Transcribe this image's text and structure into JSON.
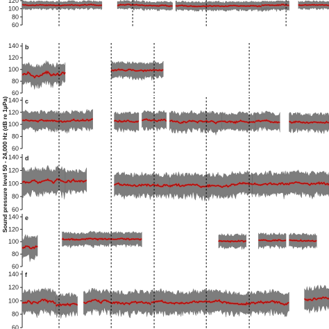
{
  "figure": {
    "ylabel": "Sound pressure level 50 - 24,000 Hz (dB re 1µPa)"
  },
  "chart_data": [
    {
      "type": "area",
      "panel": "a",
      "letter": "",
      "yticks": [
        60,
        80,
        100,
        120
      ],
      "ylim": [
        60,
        125
      ],
      "x_domain": [
        0,
        1
      ],
      "dividers": [
        0.12,
        0.36,
        0.6,
        0.86
      ],
      "segments": [
        {
          "x": [
            0.0,
            0.26
          ],
          "mean": 109,
          "spread": 9,
          "var": 2
        },
        {
          "x": [
            0.31,
            0.4
          ],
          "mean": 109,
          "spread": 10,
          "var": 2
        },
        {
          "x": [
            0.4,
            0.49
          ],
          "mean": 107,
          "spread": 9,
          "var": 2
        },
        {
          "x": [
            0.5,
            0.87
          ],
          "mean": 107,
          "spread": 10,
          "var": 2
        },
        {
          "x": [
            0.78,
            0.87
          ],
          "mean": 109,
          "spread": 9,
          "var": 1
        },
        {
          "x": [
            0.9,
            1.0
          ],
          "mean": 109,
          "spread": 9,
          "var": 1
        }
      ]
    },
    {
      "type": "area",
      "panel": "b",
      "letter": "b",
      "yticks": [
        60,
        80,
        100,
        120,
        140
      ],
      "ylim": [
        60,
        145
      ],
      "x_domain": [
        0,
        1
      ],
      "dividers": [
        0.12,
        0.29,
        0.43,
        0.74
      ],
      "segments": [
        {
          "x": [
            0.0,
            0.14
          ],
          "mean": 92,
          "spread": 16,
          "var": 7
        },
        {
          "x": [
            0.29,
            0.46
          ],
          "mean": 99,
          "spread": 12,
          "var": 3
        }
      ]
    },
    {
      "type": "area",
      "panel": "c",
      "letter": "c",
      "yticks": [
        60,
        80,
        100,
        120,
        140
      ],
      "ylim": [
        60,
        145
      ],
      "x_domain": [
        0,
        1
      ],
      "dividers": [
        0.12,
        0.29,
        0.43,
        0.6,
        0.74
      ],
      "segments": [
        {
          "x": [
            0.0,
            0.23
          ],
          "mean": 106,
          "spread": 14,
          "var": 3
        },
        {
          "x": [
            0.3,
            0.38
          ],
          "mean": 106,
          "spread": 13,
          "var": 3
        },
        {
          "x": [
            0.39,
            0.47
          ],
          "mean": 106,
          "spread": 13,
          "var": 3
        },
        {
          "x": [
            0.48,
            0.65
          ],
          "mean": 104,
          "spread": 14,
          "var": 4
        },
        {
          "x": [
            0.65,
            0.76
          ],
          "mean": 105,
          "spread": 13,
          "var": 3
        },
        {
          "x": [
            0.76,
            0.84
          ],
          "mean": 105,
          "spread": 13,
          "var": 3
        },
        {
          "x": [
            0.87,
            1.0
          ],
          "mean": 104,
          "spread": 13,
          "var": 3
        }
      ]
    },
    {
      "type": "area",
      "panel": "d",
      "letter": "d",
      "yticks": [
        60,
        80,
        100,
        120,
        140
      ],
      "ylim": [
        60,
        145
      ],
      "x_domain": [
        0,
        1
      ],
      "dividers": [
        0.12,
        0.29,
        0.43,
        0.6,
        0.74
      ],
      "segments": [
        {
          "x": [
            0.0,
            0.14
          ],
          "mean": 103,
          "spread": 18,
          "var": 5
        },
        {
          "x": [
            0.14,
            0.21
          ],
          "mean": 103,
          "spread": 16,
          "var": 5
        },
        {
          "x": [
            0.3,
            0.48
          ],
          "mean": 98,
          "spread": 16,
          "var": 4
        },
        {
          "x": [
            0.48,
            0.75
          ],
          "mean": 97,
          "spread": 16,
          "var": 4
        },
        {
          "x": [
            0.75,
            1.0
          ],
          "mean": 100,
          "spread": 16,
          "var": 4
        }
      ]
    },
    {
      "type": "area",
      "panel": "e",
      "letter": "e",
      "yticks": [
        60,
        80,
        100,
        120,
        140
      ],
      "ylim": [
        60,
        145
      ],
      "x_domain": [
        0,
        1
      ],
      "dividers": [
        0.12,
        0.29,
        0.43,
        0.6,
        0.74
      ],
      "segments": [
        {
          "x": [
            0.0,
            0.05
          ],
          "mean": 92,
          "spread": 16,
          "var": 6
        },
        {
          "x": [
            0.13,
            0.39
          ],
          "mean": 104,
          "spread": 10,
          "var": 2
        },
        {
          "x": [
            0.64,
            0.73
          ],
          "mean": 101,
          "spread": 10,
          "var": 2
        },
        {
          "x": [
            0.77,
            0.86
          ],
          "mean": 102,
          "spread": 10,
          "var": 2
        },
        {
          "x": [
            0.87,
            0.96
          ],
          "mean": 102,
          "spread": 10,
          "var": 2
        }
      ]
    },
    {
      "type": "area",
      "panel": "f",
      "letter": "f",
      "yticks": [
        60,
        80,
        100,
        120,
        140
      ],
      "ylim": [
        60,
        145
      ],
      "x_domain": [
        0,
        1
      ],
      "dividers": [
        0.12,
        0.29,
        0.43,
        0.6,
        0.74
      ],
      "segments": [
        {
          "x": [
            0.0,
            0.11
          ],
          "mean": 99,
          "spread": 16,
          "var": 5
        },
        {
          "x": [
            0.11,
            0.18
          ],
          "mean": 93,
          "spread": 14,
          "var": 5
        },
        {
          "x": [
            0.2,
            0.42
          ],
          "mean": 98,
          "spread": 15,
          "var": 4
        },
        {
          "x": [
            0.42,
            0.87
          ],
          "mean": 98,
          "spread": 15,
          "var": 4
        },
        {
          "x": [
            0.92,
            1.0
          ],
          "mean": 104,
          "spread": 16,
          "var": 5
        }
      ]
    }
  ],
  "colors": {
    "band": "#7d7d7d",
    "band_dark": "#555555",
    "mean_red": "#e0201c",
    "mean_dark": "#3a0000",
    "divider": "#000000",
    "axis": "#222222"
  }
}
